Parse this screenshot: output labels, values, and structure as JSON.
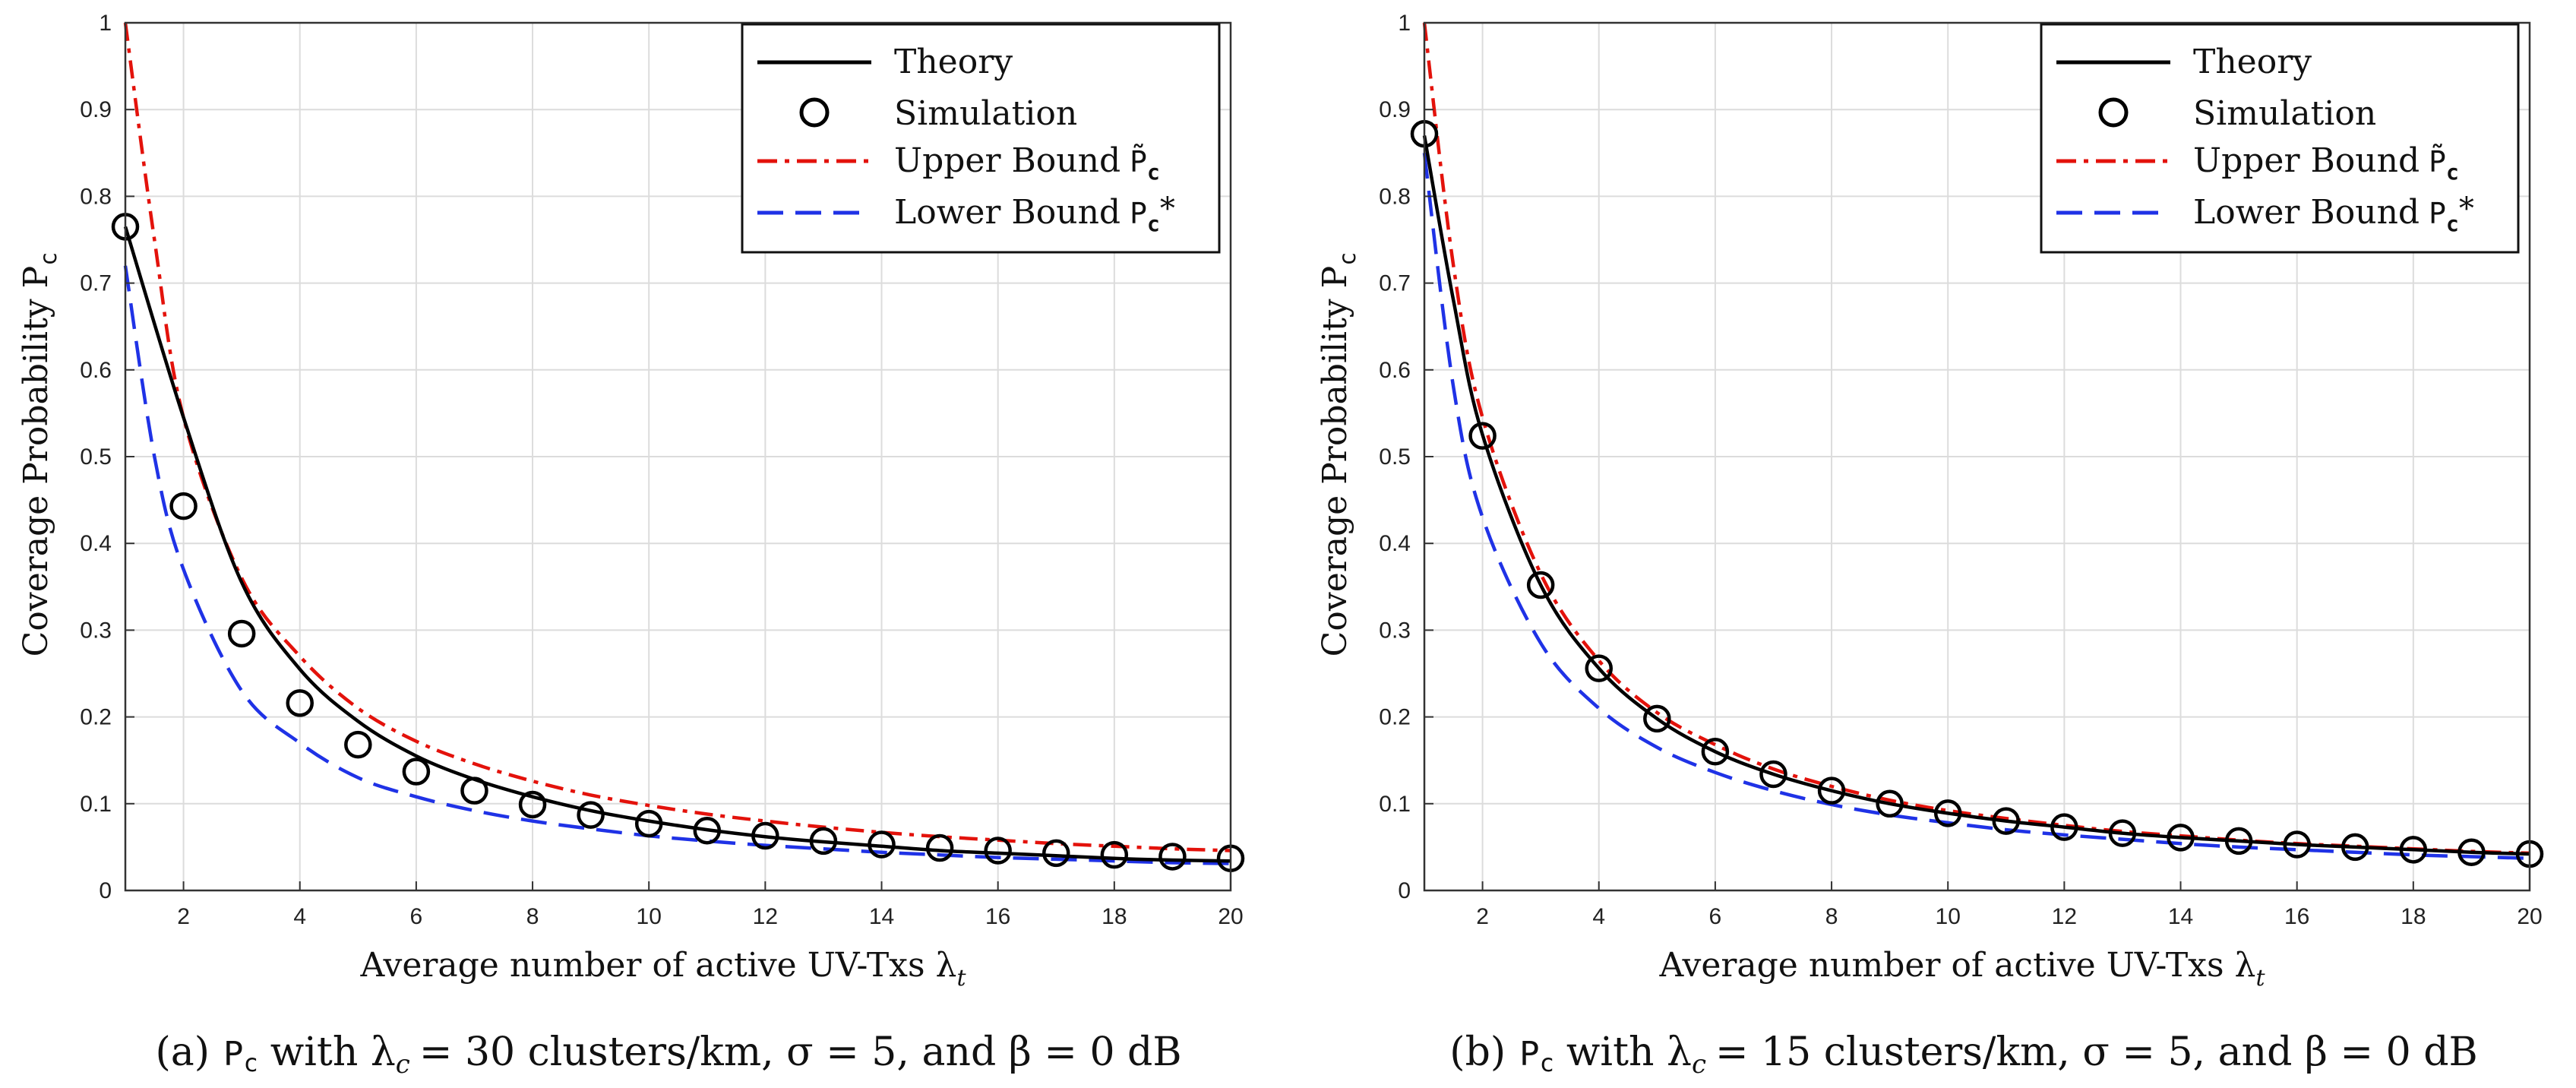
{
  "colors": {
    "theory": "#000000",
    "upper": "#e3120b",
    "lower": "#1f32e6",
    "grid": "#dcdcdc"
  },
  "chart_data": [
    {
      "type": "line",
      "panel": "a",
      "ylabel": "Coverage Probability P",
      "ylabel_sub": "c",
      "xlabel": "Average number of active UV-Txs λ",
      "xlabel_sub": "t",
      "xlim": [
        1,
        20
      ],
      "ylim": [
        0,
        1
      ],
      "xticks": [
        "2",
        "4",
        "6",
        "8",
        "10",
        "12",
        "14",
        "16",
        "18",
        "20"
      ],
      "yticks": [
        "0",
        "0.1",
        "0.2",
        "0.3",
        "0.4",
        "0.5",
        "0.6",
        "0.7",
        "0.8",
        "0.9",
        "1"
      ],
      "caption": {
        "label": "(a)",
        "sym": "P",
        "sym_sub": "c",
        "text": "with λ",
        "text_sub": "c",
        "rest": "= 30 clusters/km, σ = 5, and β = 0 dB"
      },
      "legend": {
        "theory": "Theory",
        "simulation": "Simulation",
        "upper": "Upper Bound",
        "upper_sym": "P̃",
        "upper_sub": "c",
        "lower": "Lower Bound",
        "lower_sym": "P",
        "lower_sub": "c",
        "lower_star": "*"
      },
      "series": [
        {
          "name": "Theory",
          "x": [
            1,
            2,
            3,
            4,
            5,
            6,
            7,
            8,
            9,
            10,
            11,
            12,
            13,
            14,
            15,
            16,
            17,
            18,
            19,
            20
          ],
          "values": [
            0.765,
            0.545,
            0.355,
            0.255,
            0.195,
            0.155,
            0.128,
            0.108,
            0.092,
            0.08,
            0.07,
            0.062,
            0.056,
            0.051,
            0.046,
            0.043,
            0.04,
            0.037,
            0.035,
            0.034
          ]
        },
        {
          "name": "Simulation",
          "x": [
            1,
            2,
            3,
            4,
            5,
            6,
            7,
            8,
            9,
            10,
            11,
            12,
            13,
            14,
            15,
            16,
            17,
            18,
            19,
            20
          ],
          "values": [
            0.765,
            0.443,
            0.296,
            0.216,
            0.168,
            0.137,
            0.115,
            0.099,
            0.087,
            0.077,
            0.069,
            0.063,
            0.057,
            0.053,
            0.049,
            0.046,
            0.043,
            0.041,
            0.039,
            0.037
          ]
        },
        {
          "name": "Upper Bound",
          "x": [
            1,
            1.5,
            2,
            3,
            4,
            5,
            6,
            7,
            8,
            9,
            10,
            11,
            12,
            13,
            14,
            15,
            16,
            17,
            18,
            19,
            20
          ],
          "values": [
            1.0,
            0.75,
            0.545,
            0.36,
            0.27,
            0.21,
            0.172,
            0.146,
            0.126,
            0.11,
            0.098,
            0.088,
            0.08,
            0.073,
            0.067,
            0.062,
            0.058,
            0.054,
            0.051,
            0.048,
            0.046
          ]
        },
        {
          "name": "Lower Bound",
          "x": [
            1,
            1.5,
            2,
            3,
            4,
            5,
            6,
            7,
            8,
            9,
            10,
            11,
            12,
            13,
            14,
            15,
            16,
            17,
            18,
            19,
            20
          ],
          "values": [
            0.72,
            0.5,
            0.37,
            0.23,
            0.17,
            0.13,
            0.108,
            0.092,
            0.08,
            0.071,
            0.063,
            0.057,
            0.052,
            0.048,
            0.044,
            0.041,
            0.038,
            0.036,
            0.034,
            0.032,
            0.031
          ]
        }
      ]
    },
    {
      "type": "line",
      "panel": "b",
      "ylabel": "Coverage Probability P",
      "ylabel_sub": "c",
      "xlabel": "Average number of active UV-Txs λ",
      "xlabel_sub": "t",
      "xlim": [
        1,
        20
      ],
      "ylim": [
        0,
        1
      ],
      "xticks": [
        "2",
        "4",
        "6",
        "8",
        "10",
        "12",
        "14",
        "16",
        "18",
        "20"
      ],
      "yticks": [
        "0",
        "0.1",
        "0.2",
        "0.3",
        "0.4",
        "0.5",
        "0.6",
        "0.7",
        "0.8",
        "0.9",
        "1"
      ],
      "caption": {
        "label": "(b)",
        "sym": "P",
        "sym_sub": "c",
        "text": "with λ",
        "text_sub": "c",
        "rest": "= 15 clusters/km, σ = 5, and β = 0 dB"
      },
      "legend": {
        "theory": "Theory",
        "simulation": "Simulation",
        "upper": "Upper Bound",
        "upper_sym": "P̃",
        "upper_sub": "c",
        "lower": "Lower Bound",
        "lower_sym": "P",
        "lower_sub": "c",
        "lower_star": "*"
      },
      "series": [
        {
          "name": "Theory",
          "x": [
            1,
            1.5,
            2,
            3,
            4,
            5,
            6,
            7,
            8,
            9,
            10,
            11,
            12,
            13,
            14,
            15,
            16,
            17,
            18,
            19,
            20
          ],
          "values": [
            0.87,
            0.68,
            0.525,
            0.352,
            0.256,
            0.198,
            0.16,
            0.134,
            0.115,
            0.1,
            0.089,
            0.08,
            0.073,
            0.066,
            0.061,
            0.057,
            0.053,
            0.05,
            0.047,
            0.044,
            0.042
          ]
        },
        {
          "name": "Simulation",
          "x": [
            1,
            2,
            3,
            4,
            5,
            6,
            7,
            8,
            9,
            10,
            11,
            12,
            13,
            14,
            15,
            16,
            17,
            18,
            19,
            20
          ],
          "values": [
            0.872,
            0.524,
            0.352,
            0.256,
            0.198,
            0.16,
            0.134,
            0.115,
            0.1,
            0.089,
            0.08,
            0.073,
            0.066,
            0.061,
            0.057,
            0.053,
            0.05,
            0.047,
            0.044,
            0.042
          ]
        },
        {
          "name": "Upper Bound",
          "x": [
            1,
            1.5,
            2,
            3,
            4,
            5,
            6,
            7,
            8,
            9,
            10,
            11,
            12,
            13,
            14,
            15,
            16,
            17,
            18,
            19,
            20
          ],
          "values": [
            1.0,
            0.72,
            0.545,
            0.365,
            0.265,
            0.205,
            0.168,
            0.14,
            0.12,
            0.104,
            0.092,
            0.083,
            0.075,
            0.068,
            0.063,
            0.058,
            0.054,
            0.051,
            0.048,
            0.045,
            0.043
          ]
        },
        {
          "name": "Lower Bound",
          "x": [
            1,
            1.5,
            2,
            3,
            4,
            5,
            6,
            7,
            8,
            9,
            10,
            11,
            12,
            13,
            14,
            15,
            16,
            17,
            18,
            19,
            20
          ],
          "values": [
            0.85,
            0.58,
            0.43,
            0.285,
            0.21,
            0.165,
            0.136,
            0.115,
            0.099,
            0.087,
            0.078,
            0.07,
            0.064,
            0.059,
            0.054,
            0.05,
            0.047,
            0.044,
            0.041,
            0.039,
            0.037
          ]
        }
      ]
    }
  ]
}
